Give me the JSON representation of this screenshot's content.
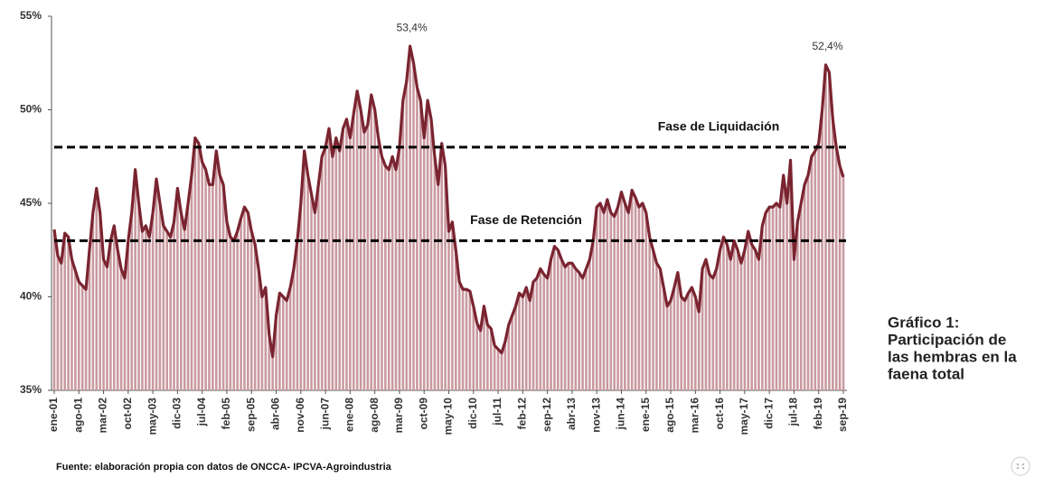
{
  "chart_data": {
    "type": "combo",
    "categories": [
      "ene-01",
      null,
      null,
      null,
      null,
      null,
      null,
      "ago-01",
      null,
      null,
      null,
      null,
      null,
      null,
      "mar-02",
      null,
      null,
      null,
      null,
      null,
      null,
      "oct-02",
      null,
      null,
      null,
      null,
      null,
      null,
      "may-03",
      null,
      null,
      null,
      null,
      null,
      null,
      "dic-03",
      null,
      null,
      null,
      null,
      null,
      null,
      "jul-04",
      null,
      null,
      null,
      null,
      null,
      null,
      "feb-05",
      null,
      null,
      null,
      null,
      null,
      null,
      "sep-05",
      null,
      null,
      null,
      null,
      null,
      null,
      "abr-06",
      null,
      null,
      null,
      null,
      null,
      null,
      "nov-06",
      null,
      null,
      null,
      null,
      null,
      null,
      "jun-07",
      null,
      null,
      null,
      null,
      null,
      null,
      "ene-08",
      null,
      null,
      null,
      null,
      null,
      null,
      "ago-08",
      null,
      null,
      null,
      null,
      null,
      null,
      "mar-09",
      null,
      null,
      null,
      null,
      null,
      null,
      "oct-09",
      null,
      null,
      null,
      null,
      null,
      null,
      "may-10",
      null,
      null,
      null,
      null,
      null,
      null,
      "dic-10",
      null,
      null,
      null,
      null,
      null,
      null,
      "jul-11",
      null,
      null,
      null,
      null,
      null,
      null,
      "feb-12",
      null,
      null,
      null,
      null,
      null,
      null,
      "sep-12",
      null,
      null,
      null,
      null,
      null,
      null,
      "abr-13",
      null,
      null,
      null,
      null,
      null,
      null,
      "nov-13",
      null,
      null,
      null,
      null,
      null,
      null,
      "jun-14",
      null,
      null,
      null,
      null,
      null,
      null,
      "ene-15",
      null,
      null,
      null,
      null,
      null,
      null,
      "ago-15",
      null,
      null,
      null,
      null,
      null,
      null,
      "mar-16",
      null,
      null,
      null,
      null,
      null,
      null,
      "oct-16",
      null,
      null,
      null,
      null,
      null,
      null,
      "may-17",
      null,
      null,
      null,
      null,
      null,
      null,
      "dic-17",
      null,
      null,
      null,
      null,
      null,
      null,
      "jul-18",
      null,
      null,
      null,
      null,
      null,
      null,
      "feb-19",
      null,
      null,
      null,
      null,
      null,
      null,
      "sep-19"
    ],
    "values": [
      43.6,
      42.2,
      41.8,
      43.4,
      43.2,
      42.0,
      41.4,
      40.8,
      40.6,
      40.4,
      42.5,
      44.5,
      45.8,
      44.5,
      42.0,
      41.6,
      43.0,
      43.8,
      42.5,
      41.5,
      41.0,
      43.0,
      44.5,
      46.8,
      45.0,
      43.5,
      43.8,
      43.2,
      44.5,
      46.3,
      45.0,
      43.8,
      43.5,
      43.2,
      44.0,
      45.8,
      44.5,
      43.6,
      45.0,
      46.5,
      48.5,
      48.2,
      47.2,
      46.8,
      46.0,
      46.0,
      47.8,
      46.5,
      46.0,
      44.0,
      43.2,
      43.0,
      43.5,
      44.2,
      44.8,
      44.5,
      43.5,
      42.8,
      41.5,
      40.0,
      40.5,
      38.0,
      36.8,
      39.0,
      40.2,
      40.0,
      39.8,
      40.5,
      41.5,
      43.0,
      45.0,
      47.8,
      46.5,
      45.5,
      44.5,
      46.0,
      47.5,
      48.0,
      49.0,
      47.5,
      48.5,
      47.8,
      49.0,
      49.5,
      48.5,
      49.8,
      51.0,
      50.0,
      48.8,
      49.2,
      50.8,
      50.0,
      48.5,
      47.5,
      47.0,
      46.8,
      47.5,
      46.8,
      48.0,
      50.5,
      51.5,
      53.4,
      52.5,
      51.2,
      50.5,
      48.5,
      50.5,
      49.5,
      47.5,
      46.0,
      48.2,
      47.0,
      43.5,
      44.0,
      42.5,
      40.8,
      40.4,
      40.4,
      40.3,
      39.5,
      38.6,
      38.2,
      39.5,
      38.5,
      38.3,
      37.4,
      37.2,
      37.0,
      37.6,
      38.5,
      39.0,
      39.5,
      40.2,
      40.0,
      40.5,
      39.8,
      40.8,
      41.0,
      41.5,
      41.2,
      41.0,
      42.0,
      42.7,
      42.5,
      42.0,
      41.6,
      41.8,
      41.8,
      41.5,
      41.3,
      41.0,
      41.5,
      42.0,
      43.0,
      44.8,
      45.0,
      44.5,
      45.2,
      44.5,
      44.3,
      44.8,
      45.6,
      45.0,
      44.5,
      45.7,
      45.3,
      44.8,
      45.0,
      44.5,
      43.2,
      42.5,
      41.8,
      41.5,
      40.5,
      39.5,
      39.8,
      40.5,
      41.3,
      40.0,
      39.8,
      40.2,
      40.5,
      40.0,
      39.2,
      41.5,
      42.0,
      41.2,
      41.0,
      41.5,
      42.5,
      43.2,
      42.8,
      42.0,
      43.0,
      42.5,
      41.8,
      42.5,
      43.5,
      42.8,
      42.5,
      42.0,
      43.8,
      44.5,
      44.8,
      44.8,
      45.0,
      44.8,
      46.5,
      45.0,
      47.3,
      42.0,
      44.0,
      45.0,
      46.0,
      46.5,
      47.5,
      47.8,
      48.2,
      50.0,
      52.4,
      52.0,
      49.5,
      48.0,
      47.0,
      46.4
    ],
    "value_labels": [
      null,
      null,
      null,
      null,
      null,
      null,
      null,
      null,
      null,
      null,
      null,
      null,
      null,
      null,
      null,
      null,
      null,
      null,
      null,
      null,
      null,
      null,
      null,
      null,
      null,
      null,
      null,
      null,
      null,
      null,
      null,
      null,
      null,
      null,
      null,
      null,
      null,
      null,
      null,
      null,
      null,
      null,
      null,
      null,
      null,
      null,
      null,
      null,
      null,
      null,
      null,
      null,
      null,
      null,
      null,
      null,
      null,
      null,
      null,
      null,
      null,
      null,
      null,
      null,
      null,
      null,
      null,
      null,
      null,
      null,
      null,
      null,
      null,
      null,
      null,
      null,
      null,
      null,
      null,
      null,
      null,
      null,
      null,
      null,
      null,
      null,
      null,
      null,
      null,
      null,
      null,
      null,
      null,
      null,
      null,
      null,
      null,
      null,
      null,
      null,
      null,
      "53,4%",
      null,
      null,
      null,
      null,
      null,
      null,
      null,
      null,
      null,
      null,
      null,
      null,
      null,
      null,
      null,
      null,
      null,
      null,
      null,
      null,
      null,
      null,
      null,
      null,
      null,
      null,
      null,
      null,
      null,
      null,
      null,
      null,
      null,
      null,
      null,
      null,
      null,
      null,
      null,
      null,
      null,
      null,
      null,
      null,
      null,
      null,
      null,
      null,
      null,
      null,
      null,
      null,
      null,
      null,
      null,
      null,
      null,
      null,
      null,
      null,
      null,
      null,
      null,
      null,
      null,
      null,
      null,
      null,
      null,
      null,
      null,
      null,
      null,
      null,
      null,
      null,
      null,
      null,
      null,
      null,
      null,
      null,
      null,
      null,
      null,
      null,
      null,
      null,
      null,
      null,
      null,
      null,
      null,
      null,
      null,
      null,
      null,
      null,
      null,
      null,
      null,
      null,
      null,
      null,
      null,
      null,
      null,
      null,
      null,
      null,
      null,
      null,
      null,
      null,
      null,
      null,
      null,
      "52,4%",
      null,
      null,
      null,
      null,
      null
    ],
    "line_color": "#7a2430",
    "bar_color": "#c99aa0",
    "ylim": [
      35,
      55
    ],
    "yticks": [
      {
        "value": 35,
        "label": "35%"
      },
      {
        "value": 40,
        "label": "40%"
      },
      {
        "value": 45,
        "label": "45%"
      },
      {
        "value": 50,
        "label": "50%"
      },
      {
        "value": 55,
        "label": "55%"
      }
    ],
    "grid": false,
    "reference_lines": [
      {
        "value": 48,
        "label": "Fase de Liquidación"
      },
      {
        "value": 43,
        "label": "Fase de Retención"
      }
    ],
    "reference_line_color": "#000000",
    "source": "Fuente: elaboración propia con datos de ONCCA-  IPCVA-Agroindustria"
  },
  "caption": {
    "lines": [
      "Gráfico 1:",
      "Participación de",
      "las hembras en la",
      "faena total"
    ],
    "color": "#5a7fa6"
  }
}
